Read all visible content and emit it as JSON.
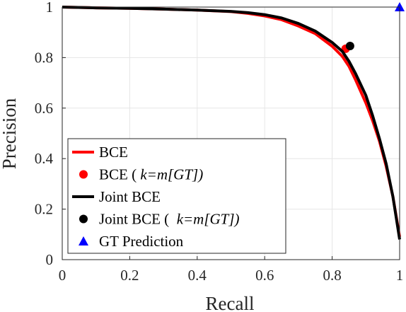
{
  "chart_data": {
    "type": "line",
    "xlabel": "Recall",
    "ylabel": "Precision",
    "xlim": [
      0,
      1
    ],
    "ylim": [
      0,
      1
    ],
    "x_ticks": [
      "0",
      "0.2",
      "0.4",
      "0.6",
      "0.8",
      "1"
    ],
    "y_ticks": [
      "0",
      "0.2",
      "0.4",
      "0.6",
      "0.8",
      "1"
    ],
    "grid": true,
    "legend_position": "bottom-left",
    "series": [
      {
        "name": "BCE",
        "kind": "line",
        "color": "#ff0000",
        "x": [
          0,
          0.1,
          0.2,
          0.3,
          0.4,
          0.5,
          0.55,
          0.6,
          0.65,
          0.7,
          0.75,
          0.8,
          0.83,
          0.85,
          0.87,
          0.9,
          0.92,
          0.94,
          0.96,
          0.98,
          1.0
        ],
        "y": [
          1.0,
          0.997,
          0.995,
          0.992,
          0.988,
          0.982,
          0.975,
          0.965,
          0.95,
          0.925,
          0.895,
          0.845,
          0.805,
          0.765,
          0.71,
          0.62,
          0.55,
          0.47,
          0.37,
          0.25,
          0.09
        ]
      },
      {
        "name": "BCE ( k=m[GT])",
        "kind": "point",
        "marker": "circle",
        "color": "#ff0000",
        "x": [
          0.84
        ],
        "y": [
          0.835
        ]
      },
      {
        "name": "Joint BCE",
        "kind": "line",
        "color": "#000000",
        "x": [
          0,
          0.1,
          0.2,
          0.3,
          0.4,
          0.5,
          0.55,
          0.6,
          0.65,
          0.7,
          0.75,
          0.8,
          0.83,
          0.85,
          0.87,
          0.9,
          0.92,
          0.94,
          0.96,
          0.98,
          1.0
        ],
        "y": [
          1.0,
          0.997,
          0.995,
          0.992,
          0.988,
          0.983,
          0.978,
          0.97,
          0.957,
          0.935,
          0.905,
          0.86,
          0.825,
          0.785,
          0.735,
          0.65,
          0.57,
          0.48,
          0.38,
          0.25,
          0.08
        ]
      },
      {
        "name": "Joint BCE (  k=m[GT])",
        "kind": "point",
        "marker": "circle",
        "color": "#000000",
        "x": [
          0.853
        ],
        "y": [
          0.846
        ]
      },
      {
        "name": "GT Prediction",
        "kind": "point",
        "marker": "triangle",
        "color": "#0000ff",
        "x": [
          1.0
        ],
        "y": [
          1.0
        ]
      }
    ],
    "legend": [
      {
        "marker": "line",
        "color": "#ff0000",
        "label": "BCE",
        "italic": ""
      },
      {
        "marker": "circle",
        "color": "#ff0000",
        "label": "BCE ( ",
        "italic": "k=m[GT])"
      },
      {
        "marker": "line",
        "color": "#000000",
        "label": "Joint BCE",
        "italic": ""
      },
      {
        "marker": "circle",
        "color": "#000000",
        "label": "Joint BCE (  ",
        "italic": "k=m[GT])"
      },
      {
        "marker": "triangle",
        "color": "#0000ff",
        "label": "GT Prediction",
        "italic": ""
      }
    ]
  }
}
